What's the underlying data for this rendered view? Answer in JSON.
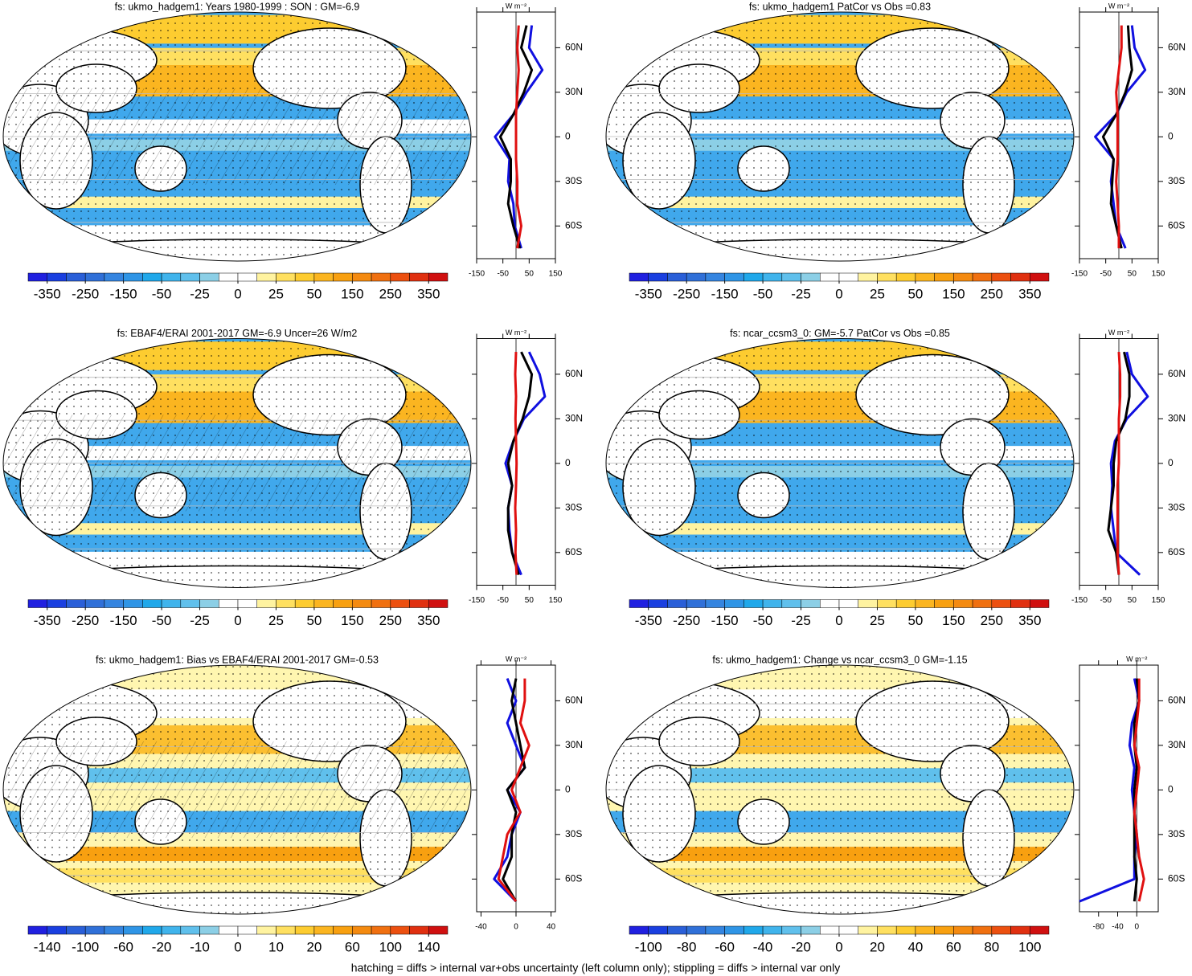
{
  "colors": [
    "#2020e0",
    "#1a3fe0",
    "#2a5fd8",
    "#3070d8",
    "#3585e0",
    "#2f95e6",
    "#20a8ea",
    "#40b4ec",
    "#60c0ec",
    "#8ccfe6",
    "#ffffff",
    "#ffffff",
    "#fff3a0",
    "#ffe060",
    "#fdcc30",
    "#fbb520",
    "#f8a010",
    "#f48a10",
    "#f07010",
    "#ec5010",
    "#e03010",
    "#d01010"
  ],
  "units": "W m⁻²",
  "footnote": "hatching = diffs > internal var+obs uncertainty (left column only); stippling = diffs > internal var only",
  "panels": [
    {
      "title": "fs: ukmo_hadgem1: Years 1980-1999 : SON : GM=-6.9",
      "colorbar": {
        "ticks": [
          -350,
          -250,
          -150,
          -50,
          -25,
          0,
          25,
          50,
          150,
          250,
          350
        ]
      },
      "profile": {
        "xlim": [
          -150,
          150
        ],
        "xticks": [
          -150,
          -50,
          50,
          150
        ],
        "ylim": [
          -82,
          84
        ],
        "yticks": [
          {
            "value": 60,
            "label": "60N"
          },
          {
            "value": 30,
            "label": "30N"
          },
          {
            "value": 0,
            "label": "0"
          },
          {
            "value": -30,
            "label": "30S"
          },
          {
            "value": -60,
            "label": "60S"
          }
        ],
        "lats": [
          -75,
          -60,
          -45,
          -30,
          -15,
          0,
          15,
          30,
          45,
          60,
          75
        ],
        "series": [
          {
            "color": "#1010e0",
            "values": [
              20,
              -5,
              -10,
              -30,
              -25,
              -80,
              -10,
              40,
              100,
              50,
              60
            ]
          },
          {
            "color": "#000000",
            "values": [
              15,
              -10,
              -30,
              -20,
              -20,
              -60,
              -10,
              30,
              60,
              20,
              40
            ]
          },
          {
            "color": "#e01010",
            "values": [
              5,
              20,
              5,
              5,
              0,
              0,
              0,
              5,
              10,
              5,
              10
            ]
          }
        ]
      }
    },
    {
      "title": "fs: ukmo_hadgem1 PatCor vs Obs =0.83",
      "colorbar": {
        "ticks": [
          -350,
          -250,
          -150,
          -50,
          -25,
          0,
          25,
          50,
          150,
          250,
          350
        ]
      },
      "profile": {
        "xlim": [
          -150,
          150
        ],
        "xticks": [
          -150,
          -50,
          50,
          150
        ],
        "ylim": [
          -82,
          84
        ],
        "yticks": [
          {
            "value": 60,
            "label": "60N"
          },
          {
            "value": 30,
            "label": "30N"
          },
          {
            "value": 0,
            "label": "0"
          },
          {
            "value": -30,
            "label": "30S"
          },
          {
            "value": -60,
            "label": "60S"
          }
        ],
        "lats": [
          -75,
          -60,
          -45,
          -30,
          -15,
          0,
          15,
          30,
          45,
          60,
          75
        ],
        "series": [
          {
            "color": "#1010e0",
            "values": [
              25,
              -10,
              -20,
              -30,
              -20,
              -90,
              -10,
              30,
              100,
              60,
              50
            ]
          },
          {
            "color": "#000000",
            "values": [
              10,
              -10,
              -30,
              -25,
              -20,
              -60,
              -10,
              25,
              50,
              40,
              35
            ]
          },
          {
            "color": "#e01010",
            "values": [
              0,
              0,
              -5,
              -10,
              -5,
              -5,
              -5,
              -10,
              0,
              10,
              10
            ]
          }
        ]
      }
    },
    {
      "title": "fs: EBAF4/ERAI 2001-2017 GM=-6.9 Uncer=26 W/m2",
      "colorbar": {
        "ticks": [
          -350,
          -250,
          -150,
          -50,
          -25,
          0,
          25,
          50,
          150,
          250,
          350
        ]
      },
      "profile": {
        "xlim": [
          -150,
          150
        ],
        "xticks": [
          -150,
          -50,
          50,
          150
        ],
        "ylim": [
          -82,
          84
        ],
        "yticks": [
          {
            "value": 60,
            "label": "60N"
          },
          {
            "value": 30,
            "label": "30N"
          },
          {
            "value": 0,
            "label": "0"
          },
          {
            "value": -30,
            "label": "30S"
          },
          {
            "value": -60,
            "label": "60S"
          }
        ],
        "lats": [
          -75,
          -60,
          -45,
          -30,
          -15,
          0,
          15,
          30,
          45,
          60,
          75
        ],
        "series": [
          {
            "color": "#1010e0",
            "values": [
              20,
              -15,
              -25,
              -30,
              -15,
              -40,
              -10,
              30,
              110,
              90,
              50
            ]
          },
          {
            "color": "#000000",
            "values": [
              10,
              -15,
              -30,
              -30,
              -15,
              -30,
              -10,
              25,
              50,
              60,
              20
            ]
          },
          {
            "color": "#e01010",
            "values": [
              2,
              -2,
              0,
              -3,
              0,
              2,
              0,
              -2,
              0,
              -3,
              0
            ]
          }
        ]
      }
    },
    {
      "title": "fs: ncar_ccsm3_0: GM=-5.7 PatCor vs Obs =0.85",
      "colorbar": {
        "ticks": [
          -350,
          -250,
          -150,
          -50,
          -25,
          0,
          25,
          50,
          150,
          250,
          350
        ]
      },
      "profile": {
        "xlim": [
          -150,
          150
        ],
        "xticks": [
          -150,
          -50,
          50,
          150
        ],
        "ylim": [
          -82,
          84
        ],
        "yticks": [
          {
            "value": 60,
            "label": "60N"
          },
          {
            "value": 30,
            "label": "30N"
          },
          {
            "value": 0,
            "label": "0"
          },
          {
            "value": -30,
            "label": "30S"
          },
          {
            "value": -60,
            "label": "60S"
          }
        ],
        "lats": [
          -75,
          -60,
          -45,
          -30,
          -15,
          0,
          15,
          30,
          45,
          60,
          75
        ],
        "series": [
          {
            "color": "#1010e0",
            "values": [
              80,
              -10,
              -20,
              -30,
              -25,
              -30,
              -15,
              30,
              110,
              50,
              30
            ]
          },
          {
            "color": "#000000",
            "values": [
              0,
              -10,
              -40,
              -30,
              -20,
              -20,
              -10,
              25,
              40,
              40,
              20
            ]
          },
          {
            "color": "#e01010",
            "values": [
              0,
              -5,
              -5,
              -5,
              -5,
              0,
              0,
              0,
              5,
              5,
              0
            ]
          }
        ]
      }
    },
    {
      "title": "fs: ukmo_hadgem1: Bias vs EBAF4/ERAI 2001-2017  GM=-0.53",
      "colorbar": {
        "ticks": [
          -140,
          -100,
          -60,
          -20,
          -10,
          0,
          10,
          20,
          60,
          100,
          140
        ]
      },
      "profile": {
        "xlim": [
          -45,
          45
        ],
        "xticks": [
          -40,
          0,
          40
        ],
        "ylim": [
          -82,
          84
        ],
        "yticks": [
          {
            "value": 60,
            "label": "60N"
          },
          {
            "value": 30,
            "label": "30N"
          },
          {
            "value": 0,
            "label": "0"
          },
          {
            "value": -30,
            "label": "30S"
          },
          {
            "value": -60,
            "label": "60S"
          }
        ],
        "lats": [
          -75,
          -60,
          -45,
          -30,
          -15,
          0,
          15,
          30,
          45,
          60,
          75
        ],
        "series": [
          {
            "color": "#1010e0",
            "values": [
              0,
              -25,
              -10,
              -5,
              5,
              -10,
              10,
              0,
              -10,
              0,
              -10
            ]
          },
          {
            "color": "#000000",
            "values": [
              0,
              -15,
              -5,
              -5,
              0,
              -10,
              10,
              5,
              0,
              -5,
              0
            ]
          },
          {
            "color": "#e01010",
            "values": [
              0,
              -20,
              -15,
              -10,
              5,
              -5,
              5,
              15,
              5,
              10,
              10
            ]
          }
        ]
      }
    },
    {
      "title": "fs: ukmo_hadgem1: Change vs ncar_ccsm3_0 GM=-1.15",
      "colorbar": {
        "ticks": [
          -100,
          -80,
          -60,
          -40,
          -20,
          0,
          20,
          40,
          60,
          80,
          100
        ]
      },
      "profile": {
        "xlim": [
          -120,
          45
        ],
        "xticks": [
          -80,
          -40,
          0
        ],
        "ylim": [
          -82,
          84
        ],
        "yticks": [
          {
            "value": 60,
            "label": "60N"
          },
          {
            "value": 30,
            "label": "30N"
          },
          {
            "value": 0,
            "label": "0"
          },
          {
            "value": -30,
            "label": "30S"
          },
          {
            "value": -60,
            "label": "60S"
          }
        ],
        "lats": [
          -75,
          -60,
          -45,
          -30,
          -15,
          0,
          15,
          30,
          45,
          60,
          75
        ],
        "series": [
          {
            "color": "#1010e0",
            "values": [
              -120,
              -5,
              -5,
              0,
              -5,
              -10,
              -5,
              -15,
              -10,
              5,
              -5
            ]
          },
          {
            "color": "#000000",
            "values": [
              -5,
              0,
              -5,
              -5,
              -5,
              -5,
              0,
              -5,
              -5,
              5,
              0
            ]
          },
          {
            "color": "#e01010",
            "values": [
              5,
              15,
              5,
              0,
              -5,
              0,
              5,
              -5,
              0,
              5,
              5
            ]
          }
        ]
      }
    }
  ]
}
